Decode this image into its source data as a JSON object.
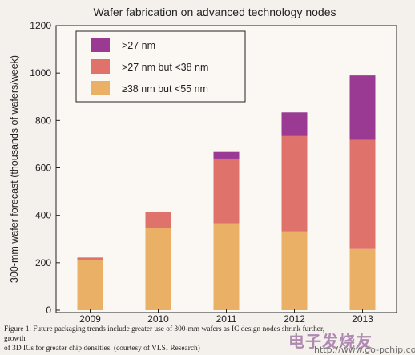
{
  "chart_data": {
    "type": "bar",
    "stacked": true,
    "title": "Wafer fabrication on advanced technology nodes",
    "ylabel": "300-mm wafer forecast (thousands of wafers/week)",
    "xlabel": "",
    "categories": [
      "2009",
      "2010",
      "2011",
      "2012",
      "2013"
    ],
    "ylim": [
      0,
      1200
    ],
    "yticks": [
      "0",
      "200",
      "400",
      "600",
      "800",
      "1000",
      "1200"
    ],
    "series": [
      {
        "name": "≥38 nm but <55 nm",
        "values": [
          212,
          348,
          366,
          332,
          258
        ],
        "color": "#e9b066"
      },
      {
        "name": ">27 nm but <38 nm",
        "values": [
          10,
          65,
          273,
          402,
          460
        ],
        "color": "#e0726c"
      },
      {
        "name": ">27 nm",
        "values": [
          0,
          0,
          28,
          100,
          272
        ],
        "color": "#9a3a92"
      }
    ],
    "legend": {
      "placement": "top-left",
      "order": [
        ">27 nm",
        ">27 nm but <38 nm",
        "≥38 nm but <55 nm"
      ]
    },
    "grid": false
  },
  "caption": {
    "line1": "Figure 1. Future packaging trends include greater use of 300-mm wafers as IC design nodes shrink further, growth",
    "line2": "of 3D ICs for greater chip densities. (courtesy of VLSI Research)"
  },
  "watermark": {
    "chars": "电子发烧友",
    "url": "http://www.go-pchip.com"
  }
}
